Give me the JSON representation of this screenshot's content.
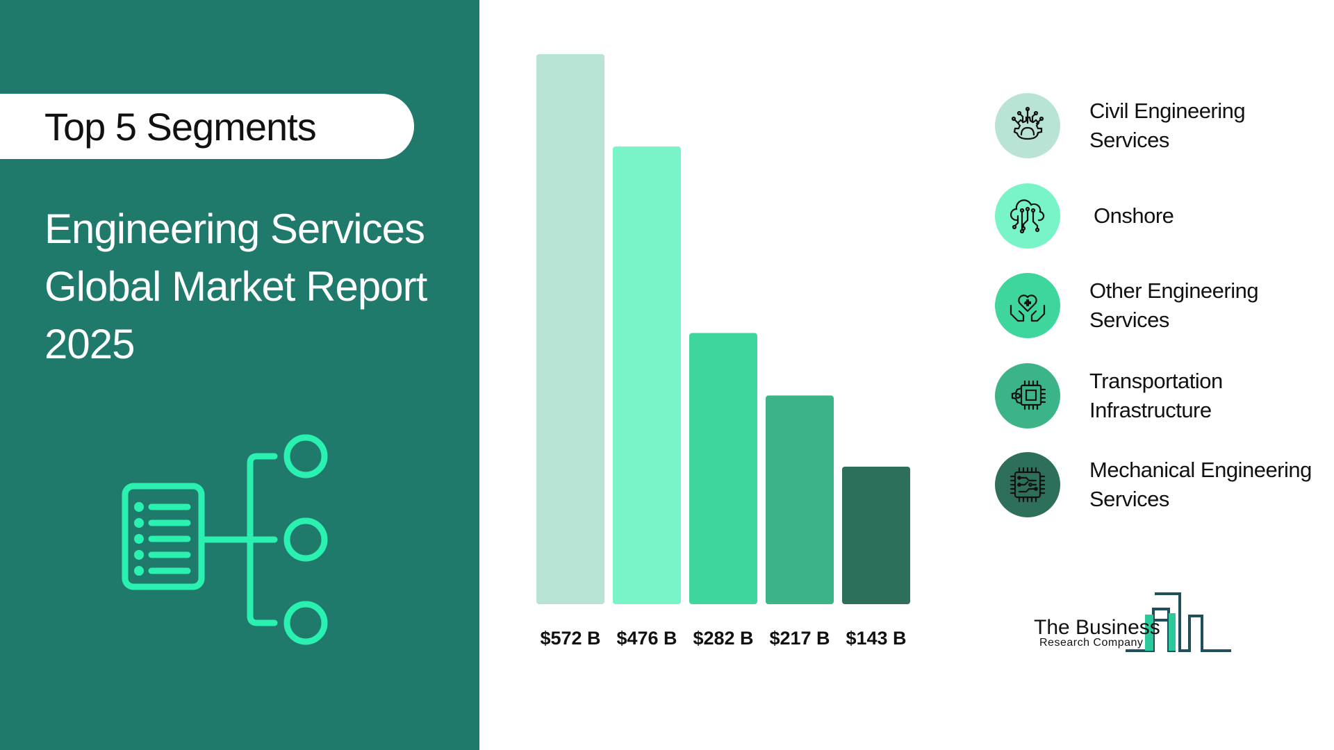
{
  "header": {
    "badge": "Top 5 Segments",
    "title_lines": [
      "Engineering Services",
      "Global Market Report",
      "2025"
    ]
  },
  "chart_data": {
    "type": "bar",
    "categories": [
      "Civil Engineering Services",
      "Onshore",
      "Other Engineering Services",
      "Transportation Infrastructure",
      "Mechanical Engineering Services"
    ],
    "values": [
      572,
      476,
      282,
      217,
      143
    ],
    "value_labels": [
      "$572 B",
      "$476 B",
      "$282 B",
      "$217 B",
      "$143 B"
    ],
    "colors": [
      "#b9e3d4",
      "#79f4c6",
      "#3ed69d",
      "#3bb488",
      "#2d6f5a"
    ],
    "ylim": [
      0,
      572
    ],
    "grid": false,
    "legend_position": "right"
  },
  "legend": {
    "items": [
      {
        "label": "Civil Engineering Services",
        "icon": "gear-circuit-icon",
        "color": "#b9e3d4"
      },
      {
        "label": "Onshore",
        "icon": "cloud-circuit-icon",
        "color": "#79f4c6"
      },
      {
        "label": "Other Engineering Services",
        "icon": "heart-hands-icon",
        "color": "#3ed69d"
      },
      {
        "label": "Transportation Infrastructure",
        "icon": "chip-gear-icon",
        "color": "#3bb488"
      },
      {
        "label": "Mechanical Engineering Services",
        "icon": "circuit-chip-icon",
        "color": "#2d6f5a"
      }
    ]
  },
  "logo": {
    "line1": "The Business",
    "line2": "Research Company"
  }
}
